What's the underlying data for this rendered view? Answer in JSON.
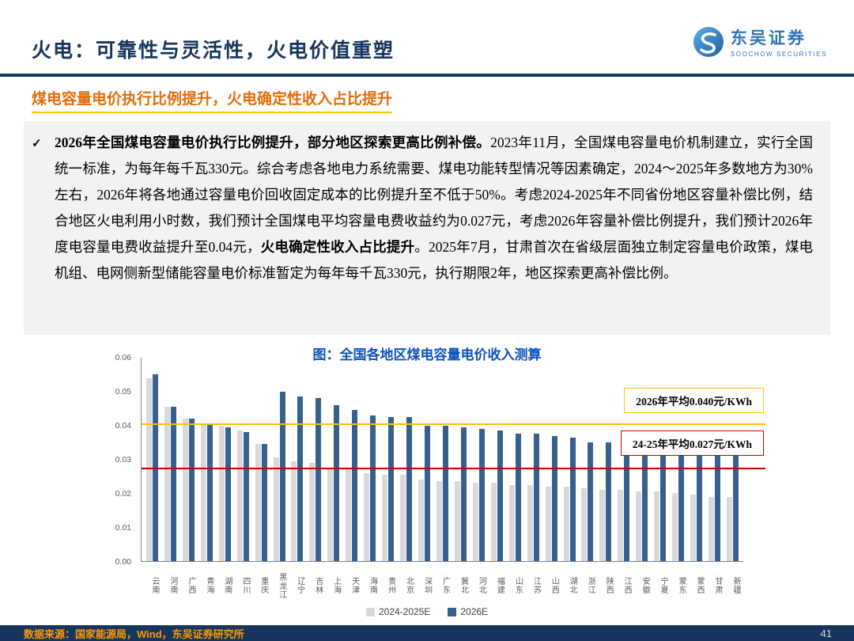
{
  "header": {
    "title": "火电：可靠性与灵活性，火电价值重塑",
    "logo": {
      "cn": "东吴证券",
      "en": "SOOCHOW SECURITIES"
    }
  },
  "subtitle": "煤电容量电价执行比例提升，火电确定性收入占比提升",
  "body": {
    "check": "✓",
    "segments": [
      {
        "text": "2026年全国煤电容量电价执行比例提升，部分地区探索更高比例补偿。",
        "bold": true
      },
      {
        "text": "2023年11月，全国煤电容量电价机制建立，实行全国统一标准，为每年每千瓦330元。综合考虑各地电力系统需要、煤电功能转型情况等因素确定，2024～2025年多数地方为30%左右，2026年将各地通过容量电价回收固定成本的比例提升至不低于50%。考虑2024-2025年不同省份地区容量补偿比例，结合地区火电利用小时数，我们预计全国煤电平均容量电费收益约为0.027元，考虑2026年容量补偿比例提升，我们预计2026年度电容量电费收益提升至0.04元，",
        "bold": false
      },
      {
        "text": "火电确定性收入占比提升",
        "bold": true
      },
      {
        "text": "。2025年7月，甘肃首次在省级层面独立制定容量电价政策，煤电机组、电网侧新型储能容量电价标准暂定为每年每千瓦330元，执行期限2年，地区探索更高补偿比例。",
        "bold": false
      }
    ]
  },
  "chart_data": {
    "type": "bar",
    "title": "图：全国各地区煤电容量电价收入测算",
    "categories": [
      "云南",
      "河南",
      "广西",
      "青海",
      "湖南",
      "四川",
      "重庆",
      "黑龙江",
      "辽宁",
      "吉林",
      "上海",
      "天津",
      "海南",
      "贵州",
      "北京",
      "深圳",
      "广东",
      "冀北",
      "河北",
      "福建",
      "山东",
      "江苏",
      "山西",
      "湖北",
      "浙江",
      "陕西",
      "江西",
      "安徽",
      "宁夏",
      "蒙东",
      "蒙西",
      "甘肃",
      "新疆"
    ],
    "series": [
      {
        "name": "2024-2025E",
        "color": "#d9d9d9",
        "values": [
          0.054,
          0.0455,
          0.042,
          0.0405,
          0.04,
          0.0385,
          0.0345,
          0.0305,
          0.0295,
          0.029,
          0.0275,
          0.027,
          0.026,
          0.0255,
          0.0255,
          0.024,
          0.0235,
          0.0235,
          0.023,
          0.023,
          0.0225,
          0.0225,
          0.022,
          0.022,
          0.0215,
          0.021,
          0.021,
          0.0205,
          0.0205,
          0.02,
          0.0195,
          0.019,
          0.019
        ]
      },
      {
        "name": "2026E",
        "color": "#36618e",
        "values": [
          0.055,
          0.0455,
          0.042,
          0.0405,
          0.0395,
          0.038,
          0.0345,
          0.05,
          0.0485,
          0.048,
          0.046,
          0.0445,
          0.043,
          0.0425,
          0.0425,
          0.04,
          0.04,
          0.0395,
          0.039,
          0.0385,
          0.0375,
          0.0375,
          0.037,
          0.0365,
          0.035,
          0.035,
          0.0345,
          0.034,
          0.033,
          0.033,
          0.0325,
          0.032,
          0.032
        ]
      }
    ],
    "ylim": [
      0,
      0.06
    ],
    "yticks": [
      "0.06",
      "0.05",
      "0.04",
      "0.03",
      "0.02",
      "0.01",
      "0.00"
    ],
    "ref_lines": [
      {
        "value": 0.04,
        "color": "#ffc000",
        "label": "2026年平均0.040元/KWh"
      },
      {
        "value": 0.027,
        "color": "#c00000",
        "label": "24-25年平均0.027元/KWh"
      }
    ],
    "legend_position": "bottom",
    "grid": false
  },
  "footer": {
    "source": "数据来源：国家能源局，Wind，东吴证券研究所",
    "page": "41"
  }
}
